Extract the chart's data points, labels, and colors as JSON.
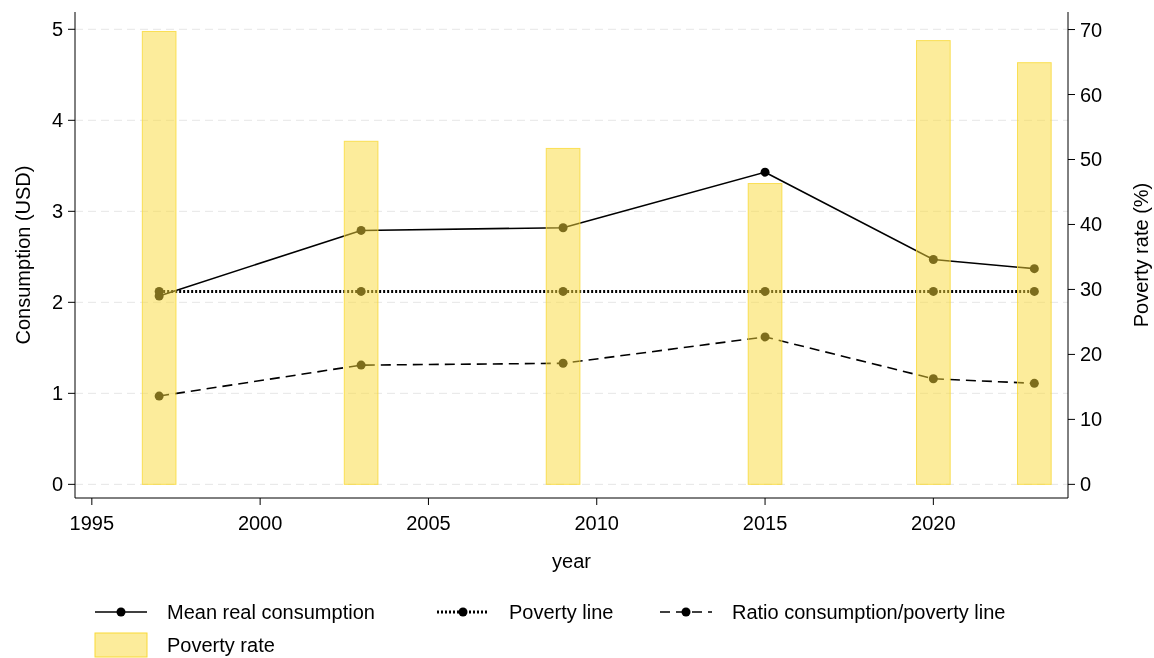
{
  "chart_data": {
    "type": "line",
    "xlabel": "year",
    "ylabel": "Consumption (USD)",
    "y2label": "Poverty rate (%)",
    "x": [
      1997,
      2003,
      2009,
      2015,
      2020,
      2023
    ],
    "series": [
      {
        "name": "Mean real consumption",
        "color": "#000000",
        "line_style": "solid",
        "marker": "circle",
        "values": [
          2.07,
          2.79,
          2.82,
          3.43,
          2.47,
          2.37
        ]
      },
      {
        "name": "Poverty line",
        "color": "#000000",
        "line_style": "dotted",
        "marker": "circle",
        "values": [
          2.12,
          2.12,
          2.12,
          2.12,
          2.12,
          2.12
        ]
      },
      {
        "name": "Ratio consumption/poverty line",
        "color": "#000000",
        "line_style": "dashed",
        "marker": "circle",
        "values": [
          0.97,
          1.31,
          1.33,
          1.62,
          1.16,
          1.11
        ]
      },
      {
        "name": "Poverty rate",
        "color": "#f9d937",
        "type": "bar",
        "axis": "y2",
        "values": [
          69.7,
          52.8,
          51.7,
          46.3,
          68.3,
          64.9
        ]
      }
    ],
    "xlim": [
      1994.5,
      2024
    ],
    "xticks": [
      1995,
      2000,
      2005,
      2010,
      2015,
      2020
    ],
    "ylim": [
      -0.15,
      5.19
    ],
    "yticks": [
      0,
      1,
      2,
      3,
      4,
      5
    ],
    "y2lim": [
      -2.1,
      72.7
    ],
    "y2ticks": [
      0,
      10,
      20,
      30,
      40,
      50,
      60,
      70
    ],
    "grid": "y",
    "legend": "bottom"
  }
}
